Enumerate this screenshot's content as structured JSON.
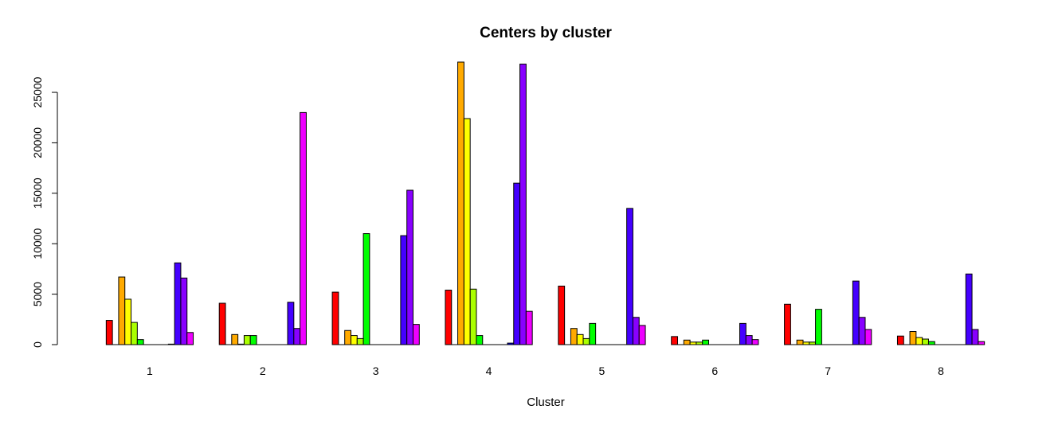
{
  "chart_data": {
    "type": "bar",
    "title": "Centers by cluster",
    "xlabel": "Cluster",
    "ylabel": "",
    "categories": [
      "1",
      "2",
      "3",
      "4",
      "5",
      "6",
      "7",
      "8"
    ],
    "ylim": [
      0,
      28000
    ],
    "yticks": [
      0,
      5000,
      10000,
      15000,
      20000,
      25000
    ],
    "grid": false,
    "legend": "none",
    "series": [
      {
        "color": "#FF0000",
        "values": [
          2400,
          4100,
          5200,
          5400,
          5800,
          800,
          4000,
          850
        ]
      },
      {
        "color": "#FFFFFF",
        "values": [
          0,
          0,
          0,
          0,
          0,
          0,
          0,
          0
        ]
      },
      {
        "color": "#FFAA00",
        "values": [
          6700,
          1000,
          1400,
          28000,
          1600,
          450,
          450,
          1300
        ]
      },
      {
        "color": "#FFFF00",
        "values": [
          4500,
          50,
          900,
          22400,
          1000,
          250,
          250,
          700
        ]
      },
      {
        "color": "#AAFF00",
        "values": [
          2200,
          900,
          600,
          5500,
          600,
          250,
          250,
          550
        ]
      },
      {
        "color": "#00FF00",
        "values": [
          500,
          900,
          11000,
          900,
          2100,
          450,
          3500,
          300
        ]
      },
      {
        "color": "#FFFFFF",
        "values": [
          0,
          0,
          0,
          0,
          0,
          0,
          0,
          0
        ]
      },
      {
        "color": "#FFFFFF",
        "values": [
          0,
          0,
          0,
          0,
          0,
          0,
          0,
          0
        ]
      },
      {
        "color": "#FFFFFF",
        "values": [
          0,
          0,
          0,
          0,
          0,
          0,
          0,
          0
        ]
      },
      {
        "color": "#FFFFFF",
        "values": [
          0,
          0,
          0,
          0,
          0,
          0,
          0,
          0
        ]
      },
      {
        "color": "#0000FF",
        "values": [
          50,
          0,
          0,
          150,
          0,
          0,
          0,
          0
        ]
      },
      {
        "color": "#4400FF",
        "values": [
          8100,
          4200,
          10800,
          16000,
          13500,
          2100,
          6300,
          7000
        ]
      },
      {
        "color": "#8800FF",
        "values": [
          6600,
          1600,
          15300,
          27800,
          2700,
          900,
          2700,
          1500
        ]
      },
      {
        "color": "#EE00FF",
        "values": [
          1200,
          23000,
          2000,
          3300,
          1900,
          500,
          1500,
          300
        ]
      }
    ]
  }
}
